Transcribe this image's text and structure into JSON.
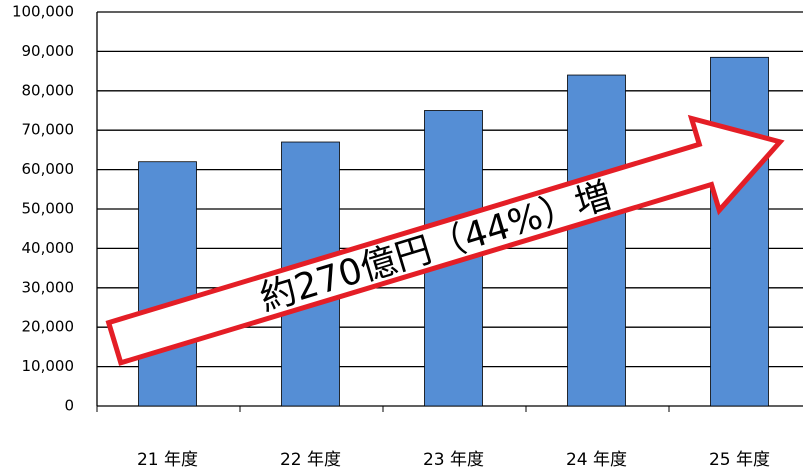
{
  "chart_data": {
    "type": "bar",
    "categories": [
      "21 年度",
      "22 年度",
      "23 年度",
      "24 年度",
      "25 年度"
    ],
    "values": [
      62000,
      67000,
      75000,
      84000,
      88500
    ],
    "color": "#558ed5",
    "ylim": [
      0,
      100000
    ],
    "yticks": [
      0,
      {
        "value": 10000,
        "label": "10,000"
      },
      {
        "value": 20000,
        "label": "20,000"
      },
      {
        "value": 30000,
        "label": "30,000"
      },
      {
        "value": 40000,
        "label": "40,000"
      },
      {
        "value": 50000,
        "label": "50,000"
      },
      {
        "value": 60000,
        "label": "60,000"
      },
      {
        "value": 70000,
        "label": "70,000"
      },
      {
        "value": 80000,
        "label": "80,000"
      },
      {
        "value": 90000,
        "label": "90,000"
      },
      {
        "value": 100000,
        "label": "100,000"
      }
    ],
    "grid": true,
    "annotation": "約270億円（44%）増"
  }
}
